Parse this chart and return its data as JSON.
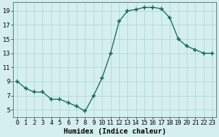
{
  "x": [
    0,
    1,
    2,
    3,
    4,
    5,
    6,
    7,
    8,
    9,
    10,
    11,
    12,
    13,
    14,
    15,
    16,
    17,
    18,
    19,
    20,
    21,
    22,
    23
  ],
  "y": [
    9.0,
    8.0,
    7.5,
    7.5,
    6.5,
    6.5,
    6.0,
    5.5,
    4.8,
    7.0,
    9.5,
    13.0,
    17.5,
    19.0,
    19.2,
    19.5,
    19.5,
    19.3,
    18.0,
    15.0,
    14.0,
    13.5,
    13.0,
    13.0
  ],
  "line_color": "#1a6b5a",
  "marker_color": "#1a6b5a",
  "bg_color": "#d4efed",
  "grid_color": "#b0d8d4",
  "xlabel": "Humidex (Indice chaleur)",
  "xlim": [
    -0.5,
    23.5
  ],
  "ylim": [
    4,
    20.2
  ],
  "yticks": [
    5,
    7,
    9,
    11,
    13,
    15,
    17,
    19
  ],
  "xlabel_fontsize": 7.5,
  "tick_fontsize": 6.5
}
